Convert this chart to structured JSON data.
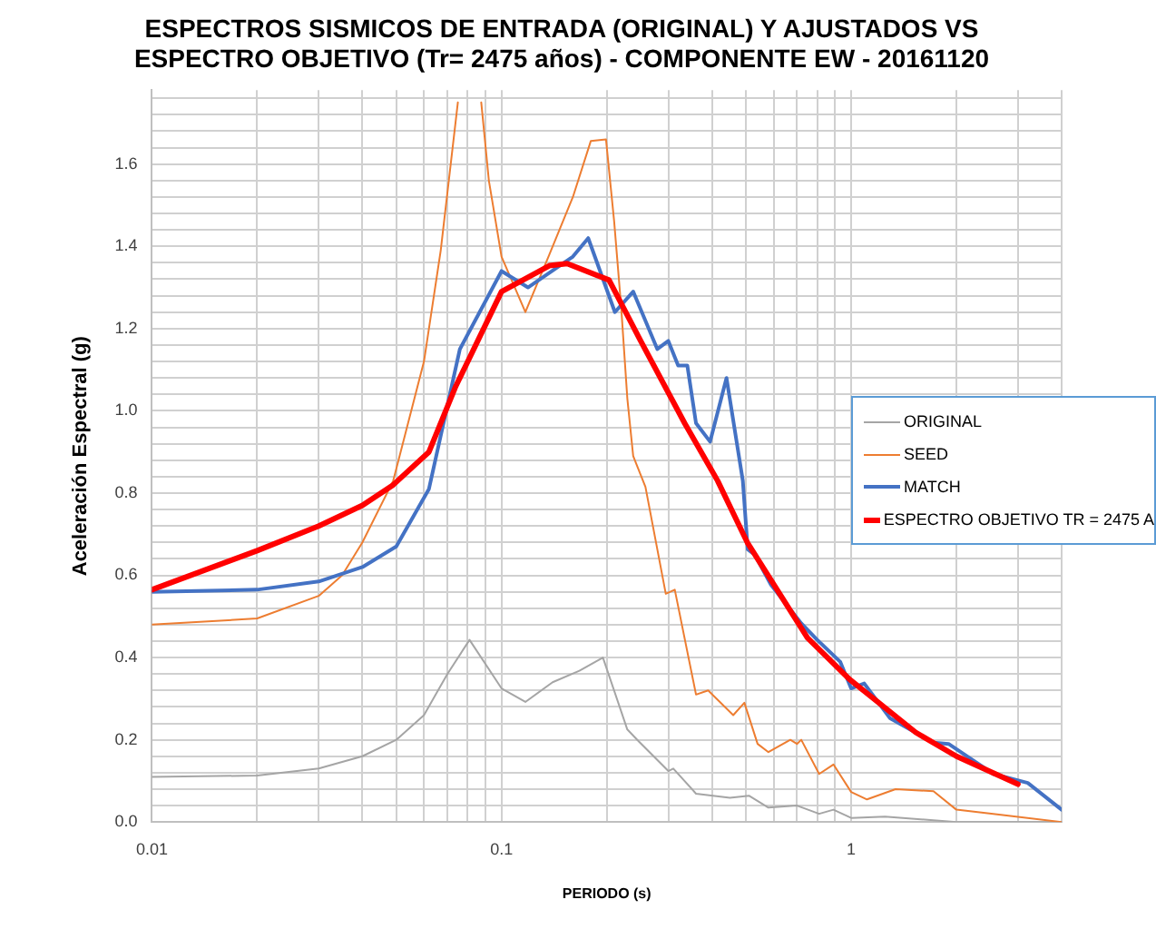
{
  "chart_data": {
    "type": "line",
    "title": "ESPECTROS SISMICOS DE ENTRADA (ORIGINAL) Y AJUSTADOS VS\nESPECTRO OBJETIVO (Tr= 2475 años) - COMPONENTE EW - 20161120",
    "xlabel": "PERIODO (s)",
    "ylabel": "Aceleración Espectral (g)",
    "log": "x",
    "grid": true,
    "legend": "right",
    "marker": "none",
    "line_style": "solid",
    "xlim": [
      0.01,
      4
    ],
    "xticks": [
      0.01,
      {
        "value": 0.02,
        "label": null
      },
      {
        "value": 0.03,
        "label": null
      },
      {
        "value": 0.04,
        "label": null
      },
      {
        "value": 0.05,
        "label": null
      },
      {
        "value": 0.06,
        "label": null
      },
      {
        "value": 0.07,
        "label": null
      },
      {
        "value": 0.08,
        "label": null
      },
      {
        "value": 0.09,
        "label": null
      },
      0.1,
      {
        "value": 0.2,
        "label": null
      },
      {
        "value": 0.3,
        "label": null
      },
      {
        "value": 0.4,
        "label": null
      },
      {
        "value": 0.5,
        "label": null
      },
      {
        "value": 0.6,
        "label": null
      },
      {
        "value": 0.7,
        "label": null
      },
      {
        "value": 0.8,
        "label": null
      },
      {
        "value": 0.9,
        "label": null
      },
      1,
      {
        "value": 2,
        "label": null
      },
      {
        "value": 3,
        "label": null
      },
      {
        "value": 4,
        "label": null
      }
    ],
    "ylim": [
      0,
      1.78
    ],
    "yticks": [
      {
        "value": 0,
        "label": "0.0"
      },
      {
        "value": 0.04,
        "label": null
      },
      {
        "value": 0.08,
        "label": null
      },
      {
        "value": 0.12,
        "label": null
      },
      {
        "value": 0.16,
        "label": null
      },
      {
        "value": 0.2,
        "label": "0.2"
      },
      {
        "value": 0.24,
        "label": null
      },
      {
        "value": 0.28,
        "label": null
      },
      {
        "value": 0.32,
        "label": null
      },
      {
        "value": 0.36,
        "label": null
      },
      {
        "value": 0.4,
        "label": "0.4"
      },
      {
        "value": 0.44,
        "label": null
      },
      {
        "value": 0.48,
        "label": null
      },
      {
        "value": 0.52,
        "label": null
      },
      {
        "value": 0.56,
        "label": null
      },
      {
        "value": 0.6,
        "label": "0.6"
      },
      {
        "value": 0.64,
        "label": null
      },
      {
        "value": 0.68,
        "label": null
      },
      {
        "value": 0.72,
        "label": null
      },
      {
        "value": 0.76,
        "label": null
      },
      {
        "value": 0.8,
        "label": "0.8"
      },
      {
        "value": 0.84,
        "label": null
      },
      {
        "value": 0.88,
        "label": null
      },
      {
        "value": 0.92,
        "label": null
      },
      {
        "value": 0.96,
        "label": null
      },
      {
        "value": 1,
        "label": "1.0"
      },
      {
        "value": 1.04,
        "label": null
      },
      {
        "value": 1.08,
        "label": null
      },
      {
        "value": 1.12,
        "label": null
      },
      {
        "value": 1.16,
        "label": null
      },
      {
        "value": 1.2,
        "label": "1.2"
      },
      {
        "value": 1.24,
        "label": null
      },
      {
        "value": 1.28,
        "label": null
      },
      {
        "value": 1.32,
        "label": null
      },
      {
        "value": 1.36,
        "label": null
      },
      {
        "value": 1.4,
        "label": "1.4"
      },
      {
        "value": 1.44,
        "label": null
      },
      {
        "value": 1.48,
        "label": null
      },
      {
        "value": 1.52,
        "label": null
      },
      {
        "value": 1.56,
        "label": null
      },
      {
        "value": 1.6,
        "label": "1.6"
      },
      {
        "value": 1.64,
        "label": null
      },
      {
        "value": 1.68,
        "label": null
      },
      {
        "value": 1.72,
        "label": null
      },
      {
        "value": 1.76,
        "label": null
      }
    ],
    "series": [
      {
        "name": "ORIGINAL",
        "color": "#a5a5a5",
        "x": [
          0.01,
          0.02,
          0.03,
          0.04,
          0.05,
          0.06,
          0.07,
          0.081,
          0.1,
          0.117,
          0.14,
          0.167,
          0.195,
          0.229,
          0.247,
          0.3,
          0.31,
          0.36,
          0.45,
          0.51,
          0.58,
          0.7,
          0.81,
          0.89,
          1.0,
          1.25,
          2.0,
          4.0
        ],
        "values": [
          0.11,
          0.113,
          0.13,
          0.16,
          0.2,
          0.26,
          0.36,
          0.443,
          0.325,
          0.292,
          0.34,
          0.368,
          0.4,
          0.225,
          0.196,
          0.124,
          0.13,
          0.069,
          0.059,
          0.064,
          0.035,
          0.04,
          0.02,
          0.03,
          0.01,
          0.013,
          0.0,
          0.0
        ]
      },
      {
        "name": "SEED",
        "color": "#ed7d31",
        "x": [
          0.01,
          0.02,
          0.03,
          0.035,
          0.04,
          0.049,
          0.06,
          0.067,
          0.075,
          0.081,
          0.0875,
          0.092,
          0.1,
          0.117,
          0.137,
          0.16,
          0.18,
          0.199,
          0.21,
          0.22,
          0.229,
          0.238,
          0.258,
          0.295,
          0.313,
          0.36,
          0.39,
          0.46,
          0.495,
          0.54,
          0.58,
          0.67,
          0.7,
          0.72,
          0.81,
          0.89,
          1.0,
          1.11,
          1.34,
          1.72,
          2.0,
          2.55,
          4.0
        ],
        "values": [
          0.48,
          0.495,
          0.55,
          0.6,
          0.68,
          0.83,
          1.12,
          1.39,
          1.75,
          null,
          1.75,
          1.56,
          1.375,
          1.24,
          1.38,
          1.52,
          1.656,
          1.66,
          1.46,
          1.25,
          1.03,
          0.89,
          0.815,
          0.555,
          0.565,
          0.31,
          0.32,
          0.26,
          0.29,
          0.19,
          0.17,
          0.2,
          0.19,
          0.2,
          0.117,
          0.14,
          0.073,
          0.055,
          0.08,
          0.075,
          0.03,
          0.02,
          0.0
        ]
      },
      {
        "name": "MATCH",
        "color": "#4472c4",
        "x": [
          0.01,
          0.02,
          0.03,
          0.04,
          0.05,
          0.062,
          0.076,
          0.1,
          0.119,
          0.16,
          0.177,
          0.211,
          0.238,
          0.279,
          0.3,
          0.32,
          0.34,
          0.36,
          0.395,
          0.44,
          0.49,
          0.506,
          0.53,
          0.59,
          0.72,
          0.8,
          0.93,
          1.0,
          1.09,
          1.29,
          1.72,
          1.9,
          2.55,
          3.2,
          4.0
        ],
        "values": [
          0.56,
          0.565,
          0.585,
          0.62,
          0.67,
          0.81,
          1.15,
          1.34,
          1.3,
          1.375,
          1.42,
          1.24,
          1.29,
          1.15,
          1.17,
          1.11,
          1.11,
          0.97,
          0.925,
          1.08,
          0.83,
          0.663,
          0.65,
          0.577,
          0.483,
          0.443,
          0.39,
          0.325,
          0.337,
          0.253,
          0.193,
          0.19,
          0.117,
          0.095,
          0.03
        ]
      },
      {
        "name": "ESPECTRO OBJETIVO TR = 2475 A",
        "color": "#ff0000",
        "x": [
          0.01,
          0.02,
          0.03,
          0.04,
          0.049,
          0.062,
          0.074,
          0.1,
          0.137,
          0.154,
          0.203,
          0.25,
          0.334,
          0.415,
          0.506,
          0.75,
          0.99,
          1.53,
          2.0,
          3.0
        ],
        "values": [
          0.565,
          0.66,
          0.72,
          0.77,
          0.82,
          0.9,
          1.06,
          1.29,
          1.353,
          1.358,
          1.318,
          1.17,
          0.97,
          0.83,
          0.678,
          0.448,
          0.347,
          0.218,
          0.16,
          0.092
        ]
      }
    ]
  }
}
